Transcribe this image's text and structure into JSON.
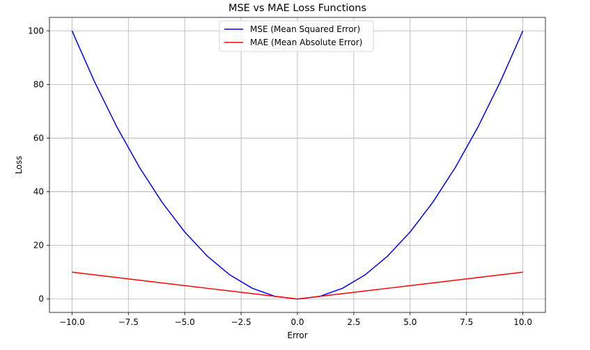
{
  "chart_data": {
    "type": "line",
    "title": "MSE vs MAE Loss Functions",
    "xlabel": "Error",
    "ylabel": "Loss",
    "xlim": [
      -11,
      11
    ],
    "ylim": [
      -5,
      105
    ],
    "x_ticks": [
      -10.0,
      -7.5,
      -5.0,
      -2.5,
      0.0,
      2.5,
      5.0,
      7.5,
      10.0
    ],
    "x_tick_labels": [
      "−10.0",
      "−7.5",
      "−5.0",
      "−2.5",
      "0.0",
      "2.5",
      "5.0",
      "7.5",
      "10.0"
    ],
    "y_ticks": [
      0,
      20,
      40,
      60,
      80,
      100
    ],
    "y_tick_labels": [
      "0",
      "20",
      "40",
      "60",
      "80",
      "100"
    ],
    "grid": true,
    "legend_position": "top-center",
    "x": [
      -10,
      -9,
      -8,
      -7,
      -6,
      -5,
      -4,
      -3,
      -2,
      -1,
      0,
      1,
      2,
      3,
      4,
      5,
      6,
      7,
      8,
      9,
      10
    ],
    "series": [
      {
        "name": "MSE (Mean Squared Error)",
        "color": "#0000ff",
        "values": [
          100,
          81,
          64,
          49,
          36,
          25,
          16,
          9,
          4,
          1,
          0,
          1,
          4,
          9,
          16,
          25,
          36,
          49,
          64,
          81,
          100
        ]
      },
      {
        "name": "MAE (Mean Absolute Error)",
        "color": "#ff0000",
        "values": [
          10,
          9,
          8,
          7,
          6,
          5,
          4,
          3,
          2,
          1,
          0,
          1,
          2,
          3,
          4,
          5,
          6,
          7,
          8,
          9,
          10
        ]
      }
    ]
  }
}
